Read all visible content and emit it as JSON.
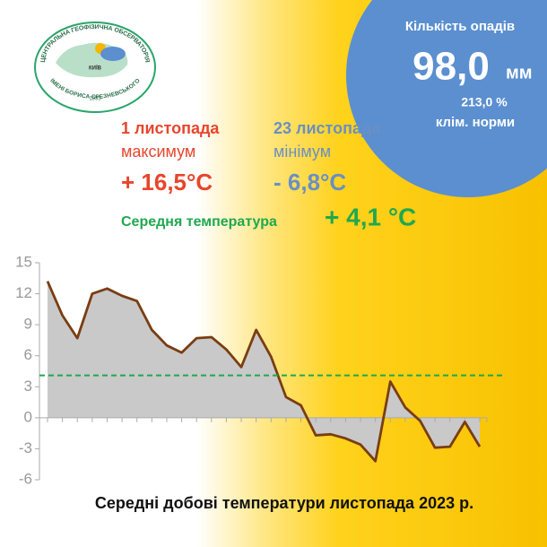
{
  "header": {
    "logo": {
      "line1": "ЦЕНТРАЛЬНА ГЕОФІЗИЧНА ОБСЕРВАТОРІЯ",
      "line2": "ІМЕНІ БОРИСА СРЕЗНЕВСЬКОГО",
      "year": "1855",
      "city": "КИЇВ"
    }
  },
  "precipitation": {
    "label": "Кількість опадів",
    "value": "98,0",
    "unit": "мм",
    "percent": "213,0 %",
    "note": "клім. норми"
  },
  "extremes": {
    "max": {
      "date": "1 листопада",
      "label": "максимум",
      "value": "+ 16,5°C"
    },
    "min": {
      "date": "23 листопада",
      "label": "мінімум",
      "value": "- 6,8°C"
    },
    "mean": {
      "label": "Середня температура",
      "value": "+ 4,1 °C"
    }
  },
  "chart_data": {
    "type": "area",
    "title": "Середні добові температури листопада 2023 р.",
    "categories": [
      null,
      null,
      null,
      null,
      null,
      null,
      null,
      null,
      null,
      null,
      null,
      null,
      null,
      null,
      null,
      null,
      null,
      null,
      null,
      null,
      null,
      null,
      null,
      null,
      null,
      null,
      null,
      null,
      null,
      null
    ],
    "values": [
      13.2,
      9.9,
      7.7,
      12.0,
      12.5,
      11.8,
      11.3,
      8.5,
      7.0,
      6.3,
      7.7,
      7.8,
      6.6,
      4.9,
      8.5,
      5.9,
      2.0,
      1.2,
      -1.7,
      -1.6,
      -2.0,
      -2.6,
      -4.2,
      3.5,
      1.0,
      -0.3,
      -2.9,
      -2.8,
      -0.4,
      -2.8
    ],
    "color": "#7a3d12",
    "fill_color": "#c9c9c9",
    "mean_line": 4.1,
    "mean_color": "#1fa84f",
    "ylim": [
      -6,
      15
    ],
    "yticks": [
      -6,
      -3,
      0,
      3,
      6,
      9,
      12,
      15
    ]
  }
}
